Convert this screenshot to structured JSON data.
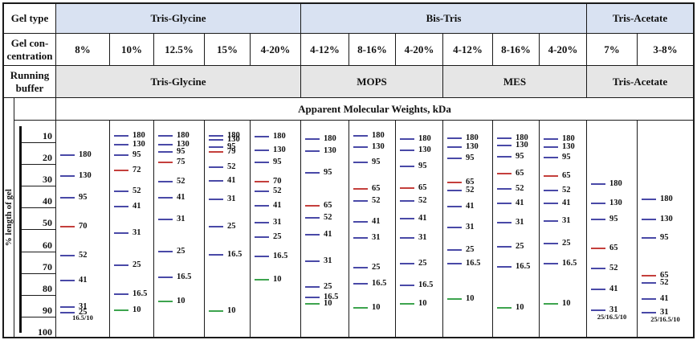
{
  "table": {
    "row_labels": {
      "gel_type": "Gel type",
      "gel_concentration_line1": "Gel con-",
      "gel_concentration_line2": "centration",
      "running_buffer_line1": "Running",
      "running_buffer_line2": "buffer"
    },
    "gel_types": [
      {
        "label": "Tris-Glycine"
      },
      {
        "label": "Bis-Tris"
      },
      {
        "label": "Tris-Acetate"
      }
    ],
    "running_buffers": [
      {
        "label": "Tris-Glycine"
      },
      {
        "label": "MOPS"
      },
      {
        "label": "MES"
      },
      {
        "label": "Tris-Acetate"
      }
    ],
    "kda_header": "Apparent Molecular Weights, kDa"
  },
  "colors": {
    "band_blue": "#4949a7",
    "band_red": "#c43f3c",
    "band_green": "#3da44e",
    "header_blue_bg": "#d9e2f2",
    "buffer_gray_bg": "#e6e6e6",
    "border": "#1a1a1a"
  },
  "chart_data": {
    "type": "table",
    "title": "Apparent Molecular Weights, kDa",
    "ylabel": "% length of gel",
    "y_axis_ticks": [
      "10",
      "20",
      "30",
      "40",
      "50",
      "60",
      "70",
      "80",
      "90",
      "100"
    ],
    "y_range": [
      10,
      100
    ],
    "band_color_meaning": {
      "blue": "standard band",
      "red": "reference band",
      "green": "10 kDa band"
    },
    "lanes": [
      {
        "gel_type": "Tris-Glycine",
        "running_buffer": "Tris-Glycine",
        "concentration": "8%",
        "bands": [
          {
            "kda": "180",
            "pct": 19
          },
          {
            "kda": "130",
            "pct": 28.5
          },
          {
            "kda": "95",
            "pct": 38.5
          },
          {
            "kda": "70",
            "pct": 51.5,
            "color": "red"
          },
          {
            "kda": "52",
            "pct": 65
          },
          {
            "kda": "41",
            "pct": 76.5
          },
          {
            "kda": "31",
            "pct": 88.5
          },
          {
            "kda": "25",
            "pct": 91
          }
        ],
        "footnote": {
          "text": "16.5/10",
          "pct": 93.5
        }
      },
      {
        "gel_type": "Tris-Glycine",
        "running_buffer": "Tris-Glycine",
        "concentration": "10%",
        "bands": [
          {
            "kda": "180",
            "pct": 10
          },
          {
            "kda": "130",
            "pct": 14
          },
          {
            "kda": "95",
            "pct": 19
          },
          {
            "kda": "72",
            "pct": 26,
            "color": "red"
          },
          {
            "kda": "52",
            "pct": 35.5
          },
          {
            "kda": "41",
            "pct": 42.5
          },
          {
            "kda": "31",
            "pct": 54.5
          },
          {
            "kda": "25",
            "pct": 69.5
          },
          {
            "kda": "16.5",
            "pct": 82.5
          },
          {
            "kda": "10",
            "pct": 90,
            "color": "green"
          }
        ]
      },
      {
        "gel_type": "Tris-Glycine",
        "running_buffer": "Tris-Glycine",
        "concentration": "12.5%",
        "bands": [
          {
            "kda": "180",
            "pct": 10
          },
          {
            "kda": "130",
            "pct": 14
          },
          {
            "kda": "95",
            "pct": 17.5
          },
          {
            "kda": "75",
            "pct": 22,
            "color": "red"
          },
          {
            "kda": "52",
            "pct": 31
          },
          {
            "kda": "41",
            "pct": 38.5
          },
          {
            "kda": "31",
            "pct": 48.5
          },
          {
            "kda": "25",
            "pct": 63
          },
          {
            "kda": "16.5",
            "pct": 75
          },
          {
            "kda": "10",
            "pct": 86,
            "color": "green"
          }
        ]
      },
      {
        "gel_type": "Tris-Glycine",
        "running_buffer": "Tris-Glycine",
        "concentration": "15%",
        "bands": [
          {
            "kda": "180",
            "pct": 10
          },
          {
            "kda": "130",
            "pct": 12
          },
          {
            "kda": "95",
            "pct": 15
          },
          {
            "kda": "79",
            "pct": 17.5,
            "color": "red"
          },
          {
            "kda": "52",
            "pct": 24.5
          },
          {
            "kda": "41",
            "pct": 30.5
          },
          {
            "kda": "31",
            "pct": 39
          },
          {
            "kda": "25",
            "pct": 51.5
          },
          {
            "kda": "16.5",
            "pct": 64.5
          },
          {
            "kda": "10",
            "pct": 90.5,
            "color": "green"
          }
        ]
      },
      {
        "gel_type": "Tris-Glycine",
        "running_buffer": "Tris-Glycine",
        "concentration": "4-20%",
        "bands": [
          {
            "kda": "180",
            "pct": 10.5
          },
          {
            "kda": "130",
            "pct": 16.5
          },
          {
            "kda": "95",
            "pct": 22
          },
          {
            "kda": "70",
            "pct": 31,
            "color": "red"
          },
          {
            "kda": "52",
            "pct": 35.5
          },
          {
            "kda": "41",
            "pct": 42
          },
          {
            "kda": "31",
            "pct": 50
          },
          {
            "kda": "25",
            "pct": 56.5
          },
          {
            "kda": "16.5",
            "pct": 65.5
          },
          {
            "kda": "10",
            "pct": 76,
            "color": "green"
          }
        ]
      },
      {
        "gel_type": "Bis-Tris",
        "running_buffer": "MOPS",
        "concentration": "4-12%",
        "bands": [
          {
            "kda": "180",
            "pct": 11.5
          },
          {
            "kda": "130",
            "pct": 17
          },
          {
            "kda": "95",
            "pct": 27
          },
          {
            "kda": "65",
            "pct": 42,
            "color": "red"
          },
          {
            "kda": "52",
            "pct": 47.5
          },
          {
            "kda": "41",
            "pct": 55.5
          },
          {
            "kda": "31",
            "pct": 67.5
          },
          {
            "kda": "25",
            "pct": 79.5
          },
          {
            "kda": "16.5",
            "pct": 84
          },
          {
            "kda": "10",
            "pct": 87,
            "color": "green"
          }
        ]
      },
      {
        "gel_type": "Bis-Tris",
        "running_buffer": "MOPS",
        "concentration": "8-16%",
        "bands": [
          {
            "kda": "180",
            "pct": 10
          },
          {
            "kda": "130",
            "pct": 15
          },
          {
            "kda": "95",
            "pct": 22
          },
          {
            "kda": "65",
            "pct": 34.5,
            "color": "red"
          },
          {
            "kda": "52",
            "pct": 40
          },
          {
            "kda": "41",
            "pct": 49.5
          },
          {
            "kda": "31",
            "pct": 57
          },
          {
            "kda": "25",
            "pct": 70.5
          },
          {
            "kda": "16.5",
            "pct": 78
          },
          {
            "kda": "10",
            "pct": 89,
            "color": "green"
          }
        ]
      },
      {
        "gel_type": "Bis-Tris",
        "running_buffer": "MOPS",
        "concentration": "4-20%",
        "bands": [
          {
            "kda": "180",
            "pct": 11.5
          },
          {
            "kda": "130",
            "pct": 16.5
          },
          {
            "kda": "95",
            "pct": 24
          },
          {
            "kda": "65",
            "pct": 34,
            "color": "red"
          },
          {
            "kda": "52",
            "pct": 40
          },
          {
            "kda": "41",
            "pct": 48
          },
          {
            "kda": "31",
            "pct": 57
          },
          {
            "kda": "25",
            "pct": 68.5
          },
          {
            "kda": "16.5",
            "pct": 78.5
          },
          {
            "kda": "10",
            "pct": 87,
            "color": "green"
          }
        ]
      },
      {
        "gel_type": "Bis-Tris",
        "running_buffer": "MES",
        "concentration": "4-12%",
        "bands": [
          {
            "kda": "180",
            "pct": 11
          },
          {
            "kda": "130",
            "pct": 15
          },
          {
            "kda": "95",
            "pct": 20.5
          },
          {
            "kda": "65",
            "pct": 31.5,
            "color": "red"
          },
          {
            "kda": "52",
            "pct": 35
          },
          {
            "kda": "41",
            "pct": 42.5
          },
          {
            "kda": "31",
            "pct": 52
          },
          {
            "kda": "25",
            "pct": 62.5
          },
          {
            "kda": "16.5",
            "pct": 68.5
          },
          {
            "kda": "10",
            "pct": 85,
            "color": "green"
          }
        ]
      },
      {
        "gel_type": "Bis-Tris",
        "running_buffer": "MES",
        "concentration": "8-16%",
        "bands": [
          {
            "kda": "180",
            "pct": 11
          },
          {
            "kda": "130",
            "pct": 14.5
          },
          {
            "kda": "95",
            "pct": 19.5
          },
          {
            "kda": "65",
            "pct": 27.5,
            "color": "red"
          },
          {
            "kda": "52",
            "pct": 34.5
          },
          {
            "kda": "41",
            "pct": 41
          },
          {
            "kda": "31",
            "pct": 50
          },
          {
            "kda": "25",
            "pct": 61
          },
          {
            "kda": "16.5",
            "pct": 70
          },
          {
            "kda": "10",
            "pct": 89,
            "color": "green"
          }
        ]
      },
      {
        "gel_type": "Bis-Tris",
        "running_buffer": "MES",
        "concentration": "4-20%",
        "bands": [
          {
            "kda": "180",
            "pct": 11.5
          },
          {
            "kda": "130",
            "pct": 15
          },
          {
            "kda": "95",
            "pct": 20
          },
          {
            "kda": "65",
            "pct": 28.5,
            "color": "red"
          },
          {
            "kda": "52",
            "pct": 35
          },
          {
            "kda": "41",
            "pct": 41
          },
          {
            "kda": "31",
            "pct": 49
          },
          {
            "kda": "25",
            "pct": 59.5
          },
          {
            "kda": "16.5",
            "pct": 68.5
          },
          {
            "kda": "10",
            "pct": 87,
            "color": "green"
          }
        ]
      },
      {
        "gel_type": "Tris-Acetate",
        "running_buffer": "Tris-Acetate",
        "concentration": "7%",
        "bands": [
          {
            "kda": "180",
            "pct": 32
          },
          {
            "kda": "130",
            "pct": 41
          },
          {
            "kda": "95",
            "pct": 48.5
          },
          {
            "kda": "65",
            "pct": 61.5,
            "color": "red"
          },
          {
            "kda": "52",
            "pct": 71
          },
          {
            "kda": "41",
            "pct": 80.5
          },
          {
            "kda": "31",
            "pct": 90
          }
        ],
        "footnote": {
          "text": "25/16.5/10",
          "pct": 93
        }
      },
      {
        "gel_type": "Tris-Acetate",
        "running_buffer": "Tris-Acetate",
        "concentration": "3-8%",
        "bands": [
          {
            "kda": "180",
            "pct": 39
          },
          {
            "kda": "130",
            "pct": 48.5
          },
          {
            "kda": "95",
            "pct": 57
          },
          {
            "kda": "65",
            "pct": 74,
            "color": "red"
          },
          {
            "kda": "52",
            "pct": 77.5
          },
          {
            "kda": "41",
            "pct": 85
          },
          {
            "kda": "31",
            "pct": 91
          }
        ],
        "footnote": {
          "text": "25/16.5/10",
          "pct": 94
        }
      }
    ]
  }
}
